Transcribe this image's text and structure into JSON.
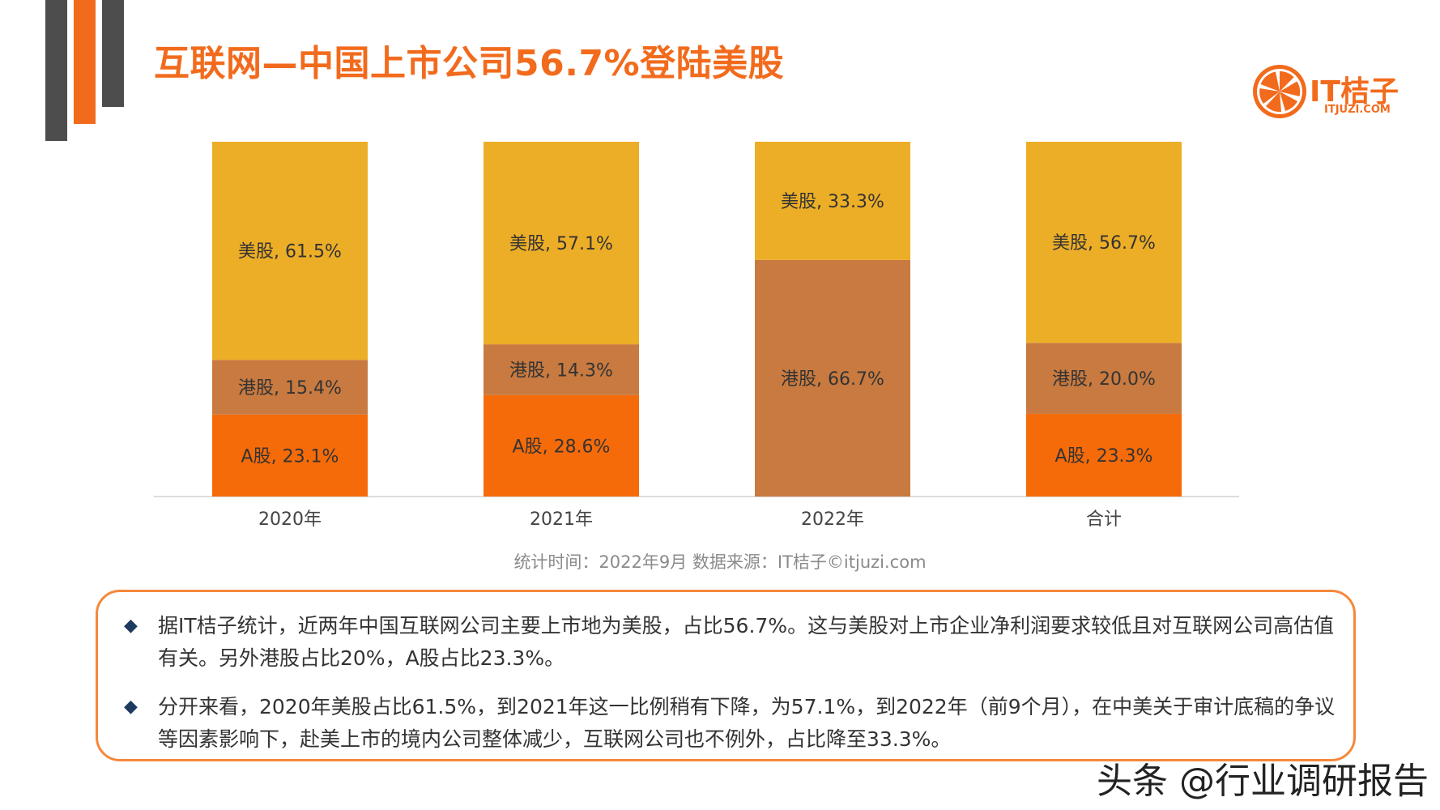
{
  "title": "互联网—中国上市公司56.7%登陆美股",
  "logo": {
    "name": "IT桔子",
    "url": "ITJUZI.COM"
  },
  "colors": {
    "accent": "#f26b1d",
    "us": "#edae27",
    "hk": "#c87a40",
    "a": "#f56b09"
  },
  "chart_data": {
    "type": "bar",
    "stacked": true,
    "categories": [
      "2020年",
      "2021年",
      "2022年",
      "合计"
    ],
    "series": [
      {
        "name": "A股",
        "values": [
          23.1,
          28.6,
          0,
          23.3
        ],
        "labels": [
          "A股, 23.1%",
          "A股, 28.6%",
          "",
          "A股, 23.3%"
        ]
      },
      {
        "name": "港股",
        "values": [
          15.4,
          14.3,
          66.7,
          20.0
        ],
        "labels": [
          "港股, 15.4%",
          "港股, 14.3%",
          "港股, 66.7%",
          "港股, 20.0%"
        ]
      },
      {
        "name": "美股",
        "values": [
          61.5,
          57.1,
          33.3,
          56.7
        ],
        "labels": [
          "美股, 61.5%",
          "美股, 57.1%",
          "美股, 33.3%",
          "美股, 56.7%"
        ]
      }
    ],
    "ylim": [
      0,
      100
    ]
  },
  "footnote": "统计时间：2022年9月  数据来源：IT桔子©itjuzi.com",
  "bullets": [
    "据IT桔子统计，近两年中国互联网公司主要上市地为美股，占比56.7%。这与美股对上市企业净利润要求较低且对互联网公司高估值有关。另外港股占比20%，A股占比23.3%。",
    "分开来看，2020年美股占比61.5%，到2021年这一比例稍有下降，为57.1%，到2022年（前9个月），在中美关于审计底稿的争议等因素影响下，赴美上市的境内公司整体减少，互联网公司也不例外，占比降至33.3%。"
  ],
  "bullet_mark": "◆",
  "watermark": "头条 @行业调研报告"
}
